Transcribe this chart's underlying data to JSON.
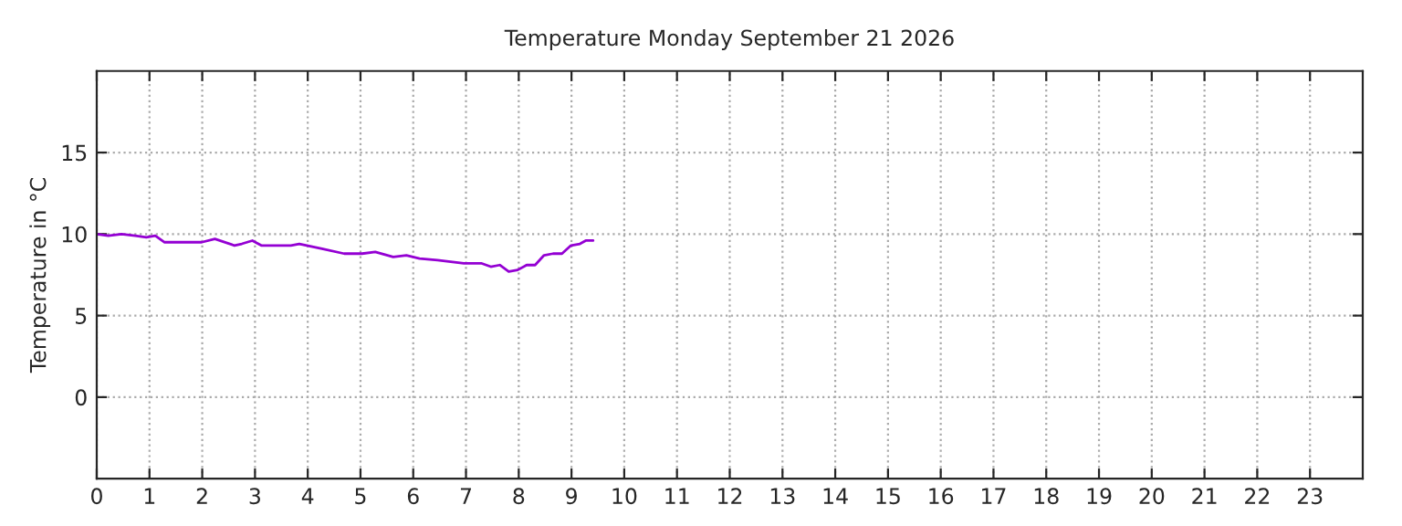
{
  "chart_data": {
    "type": "line",
    "title": "Temperature Monday September 21 2026",
    "ylabel": "Temperature in °C",
    "series": [
      {
        "color": "#9400d3",
        "x": [
          0,
          0.22,
          0.47,
          0.73,
          0.94,
          1.11,
          1.28,
          1.99,
          2.24,
          2.61,
          2.75,
          2.95,
          3.12,
          3.68,
          3.84,
          4.27,
          4.69,
          5.03,
          5.28,
          5.62,
          5.87,
          6.12,
          6.46,
          6.71,
          6.96,
          7.3,
          7.47,
          7.64,
          7.81,
          7.98,
          8.15,
          8.31,
          8.48,
          8.65,
          8.82,
          8.99,
          9.16,
          9.27,
          9.41
        ],
        "values": [
          10.0,
          9.9,
          10.0,
          9.9,
          9.8,
          9.9,
          9.5,
          9.5,
          9.7,
          9.3,
          9.4,
          9.6,
          9.3,
          9.3,
          9.4,
          9.1,
          8.8,
          8.8,
          8.9,
          8.6,
          8.7,
          8.5,
          8.4,
          8.3,
          8.2,
          8.2,
          8.0,
          8.1,
          7.7,
          7.8,
          8.1,
          8.1,
          8.7,
          8.8,
          8.8,
          9.3,
          9.4,
          9.6,
          9.6
        ]
      }
    ],
    "xlim": [
      0,
      24
    ],
    "xticks": [
      0,
      1,
      2,
      3,
      4,
      5,
      6,
      7,
      8,
      9,
      10,
      11,
      12,
      13,
      14,
      15,
      16,
      17,
      18,
      19,
      20,
      21,
      22,
      23
    ],
    "ylim": [
      -5,
      20
    ],
    "yticks": [
      0,
      5,
      10,
      15
    ],
    "grid": true,
    "marker": "none",
    "line_style": "solid"
  }
}
